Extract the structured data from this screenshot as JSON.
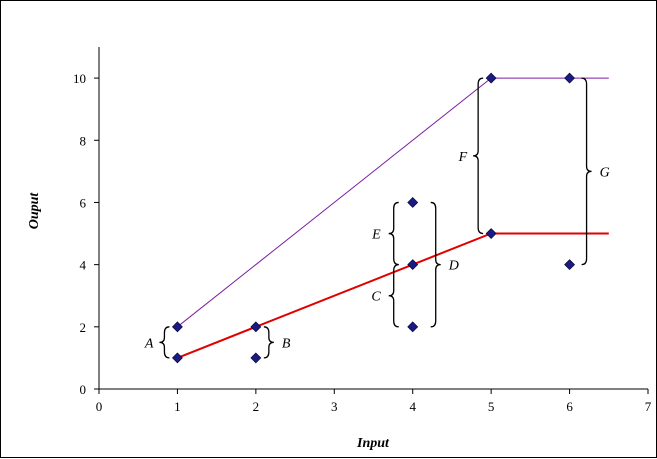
{
  "chart_data": {
    "type": "line",
    "title": "",
    "xlabel": "Input",
    "ylabel": "Ouput",
    "xlim": [
      0,
      7
    ],
    "ylim": [
      0,
      11
    ],
    "xticks": [
      "0",
      "1",
      "2",
      "3",
      "4",
      "5",
      "6",
      "7"
    ],
    "yticks": [
      "0",
      "2",
      "4",
      "6",
      "8",
      "10"
    ],
    "grid": false,
    "legend": "none",
    "colors": {
      "upper_line": "#7a1fa2",
      "lower_line": "#e00000",
      "marker": "#1a1a80"
    },
    "lines": [
      {
        "points": [
          [
            1,
            2
          ],
          [
            5,
            10
          ],
          [
            6.5,
            10
          ]
        ]
      },
      {
        "points": [
          [
            1,
            1
          ],
          [
            5,
            5
          ],
          [
            6.5,
            5
          ]
        ]
      }
    ],
    "markers": [
      [
        1,
        2
      ],
      [
        1,
        1
      ],
      [
        2,
        2
      ],
      [
        2,
        1
      ],
      [
        4,
        6
      ],
      [
        4,
        4
      ],
      [
        4,
        2
      ],
      [
        5,
        10
      ],
      [
        5,
        5
      ],
      [
        6,
        10
      ],
      [
        6,
        4
      ]
    ],
    "annotations": [
      {
        "label": "A",
        "x": 1,
        "y_from": 1,
        "y_to": 2
      },
      {
        "label": "B",
        "x": 2,
        "y_from": 1,
        "y_to": 2
      },
      {
        "label": "C",
        "x": 4,
        "y_from": 2,
        "y_to": 4
      },
      {
        "label": "D",
        "x": 4,
        "y_from": 2,
        "y_to": 6
      },
      {
        "label": "E",
        "x": 4,
        "y_from": 4,
        "y_to": 6
      },
      {
        "label": "F",
        "x": 5,
        "y_from": 5,
        "y_to": 10
      },
      {
        "label": "G",
        "x": 6,
        "y_from": 4,
        "y_to": 10
      }
    ]
  }
}
